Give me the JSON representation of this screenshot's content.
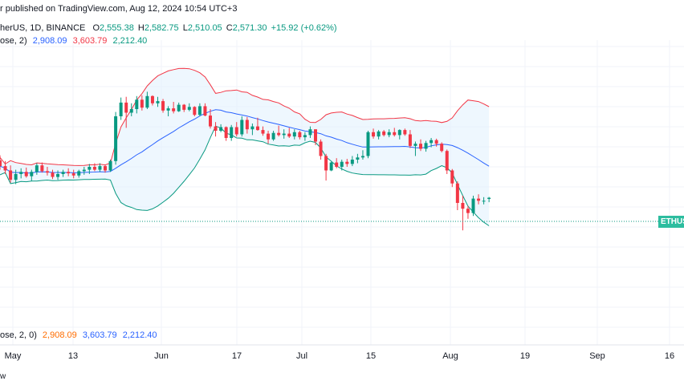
{
  "header": {
    "published_text": "r published on TradingView.com, Aug 12, 2024 10:54 UTC+3",
    "symbol_text": "herUS, 1D, BINANCE",
    "ohlc": {
      "o_label": "O",
      "o_value": "2,555.38",
      "h_label": "H",
      "h_value": "2,582.75",
      "l_label": "L",
      "l_value": "2,510.05",
      "c_label": "C",
      "c_value": "2,571.30",
      "change": "+15.92 (+0.62%)"
    }
  },
  "bb_legend": {
    "label": "ose, 2)",
    "basis": "2,908.09",
    "upper": "3,603.79",
    "lower": "2,212.40"
  },
  "bottom_legend": {
    "label": "ose, 2, 0)",
    "v1": "2,908.09",
    "v2": "3,603.79",
    "v3": "2,212.40"
  },
  "price_tag": "ETHUS",
  "time_axis": [
    "May",
    "13",
    "Jun",
    "17",
    "Jul",
    "15",
    "Aug",
    "19",
    "Sep",
    "16"
  ],
  "logo_text": "w",
  "colors": {
    "up": "#089981",
    "down": "#f23645",
    "basis": "#2962ff",
    "upper": "#f23645",
    "lower": "#089981",
    "band_fill": "#e3f2fd"
  },
  "chart_data": {
    "type": "candlestick",
    "symbol": "herUS",
    "timeframe": "1D",
    "exchange": "BINANCE",
    "candles": [
      [
        3090,
        3160,
        2960,
        3010
      ],
      [
        3010,
        3080,
        2900,
        2950
      ],
      [
        2950,
        3020,
        2780,
        2820
      ],
      [
        2820,
        2960,
        2760,
        2900
      ],
      [
        2900,
        2980,
        2840,
        2930
      ],
      [
        2930,
        2990,
        2850,
        2870
      ],
      [
        2870,
        2960,
        2800,
        2930
      ],
      [
        2930,
        3050,
        2890,
        3020
      ],
      [
        3020,
        3060,
        2920,
        2940
      ],
      [
        2940,
        3000,
        2880,
        2920
      ],
      [
        2920,
        2960,
        2830,
        2860
      ],
      [
        2860,
        2950,
        2820,
        2900
      ],
      [
        2900,
        2960,
        2860,
        2930
      ],
      [
        2930,
        2980,
        2870,
        2910
      ],
      [
        2910,
        2960,
        2840,
        2880
      ],
      [
        2880,
        2960,
        2850,
        2940
      ],
      [
        2940,
        3000,
        2890,
        2960
      ],
      [
        2960,
        3040,
        2900,
        3000
      ],
      [
        3000,
        3050,
        2940,
        2960
      ],
      [
        2960,
        3050,
        2930,
        3010
      ],
      [
        3010,
        3030,
        2920,
        2950
      ],
      [
        2950,
        3100,
        2930,
        3080
      ],
      [
        3080,
        3760,
        3030,
        3700
      ],
      [
        3700,
        3960,
        3650,
        3890
      ],
      [
        3890,
        3970,
        3540,
        3750
      ],
      [
        3750,
        3880,
        3700,
        3800
      ],
      [
        3800,
        3980,
        3740,
        3930
      ],
      [
        3930,
        3990,
        3780,
        3820
      ],
      [
        3820,
        4040,
        3800,
        3980
      ],
      [
        3980,
        3990,
        3850,
        3880
      ],
      [
        3880,
        3970,
        3830,
        3910
      ],
      [
        3910,
        3940,
        3750,
        3780
      ],
      [
        3780,
        3840,
        3700,
        3810
      ],
      [
        3810,
        3900,
        3740,
        3770
      ],
      [
        3770,
        3890,
        3760,
        3860
      ],
      [
        3860,
        3870,
        3760,
        3790
      ],
      [
        3790,
        3880,
        3770,
        3830
      ],
      [
        3830,
        3840,
        3700,
        3720
      ],
      [
        3720,
        3880,
        3700,
        3840
      ],
      [
        3840,
        3880,
        3700,
        3710
      ],
      [
        3710,
        3800,
        3530,
        3560
      ],
      [
        3560,
        3620,
        3420,
        3500
      ],
      [
        3500,
        3590,
        3480,
        3550
      ],
      [
        3550,
        3560,
        3360,
        3400
      ],
      [
        3400,
        3580,
        3360,
        3550
      ],
      [
        3550,
        3620,
        3420,
        3450
      ],
      [
        3450,
        3700,
        3420,
        3650
      ],
      [
        3650,
        3690,
        3460,
        3520
      ],
      [
        3520,
        3600,
        3440,
        3560
      ],
      [
        3560,
        3680,
        3500,
        3510
      ],
      [
        3510,
        3560,
        3430,
        3460
      ],
      [
        3460,
        3500,
        3320,
        3380
      ],
      [
        3380,
        3500,
        3360,
        3470
      ],
      [
        3470,
        3570,
        3420,
        3440
      ],
      [
        3440,
        3520,
        3390,
        3460
      ],
      [
        3460,
        3540,
        3400,
        3420
      ],
      [
        3420,
        3520,
        3380,
        3480
      ],
      [
        3480,
        3500,
        3380,
        3410
      ],
      [
        3410,
        3480,
        3360,
        3440
      ],
      [
        3440,
        3560,
        3400,
        3520
      ],
      [
        3520,
        3520,
        3300,
        3350
      ],
      [
        3350,
        3380,
        3100,
        3150
      ],
      [
        3150,
        3180,
        2810,
        2950
      ],
      [
        2950,
        3070,
        2940,
        3060
      ],
      [
        3060,
        3120,
        2980,
        3000
      ],
      [
        3000,
        3100,
        2950,
        3070
      ],
      [
        3070,
        3110,
        3000,
        3040
      ],
      [
        3040,
        3150,
        3010,
        3100
      ],
      [
        3100,
        3180,
        3050,
        3130
      ],
      [
        3130,
        3230,
        3100,
        3150
      ],
      [
        3150,
        3500,
        3120,
        3480
      ],
      [
        3480,
        3530,
        3390,
        3420
      ],
      [
        3420,
        3510,
        3380,
        3490
      ],
      [
        3490,
        3510,
        3420,
        3440
      ],
      [
        3440,
        3520,
        3410,
        3480
      ],
      [
        3480,
        3540,
        3420,
        3440
      ],
      [
        3440,
        3520,
        3380,
        3510
      ],
      [
        3510,
        3530,
        3430,
        3450
      ],
      [
        3450,
        3510,
        3260,
        3290
      ],
      [
        3290,
        3350,
        3150,
        3320
      ],
      [
        3320,
        3380,
        3220,
        3250
      ],
      [
        3250,
        3360,
        3210,
        3330
      ],
      [
        3330,
        3400,
        3270,
        3370
      ],
      [
        3370,
        3390,
        3280,
        3320
      ],
      [
        3320,
        3340,
        3200,
        3220
      ],
      [
        3220,
        3240,
        2900,
        2950
      ],
      [
        2950,
        2970,
        2720,
        2770
      ],
      [
        2770,
        2800,
        2400,
        2500
      ],
      [
        2500,
        2600,
        2120,
        2420
      ],
      [
        2420,
        2460,
        2280,
        2360
      ],
      [
        2360,
        2600,
        2320,
        2560
      ],
      [
        2560,
        2620,
        2480,
        2530
      ],
      [
        2530,
        2580,
        2480,
        2530
      ],
      [
        2555.38,
        2582.75,
        2510.05,
        2571.3
      ]
    ],
    "indicators": [
      {
        "type": "Bollinger Bands",
        "length": 20,
        "source": "close",
        "mult": 2,
        "offset": 0,
        "basis": 2908.09,
        "upper": 3603.79,
        "lower": 2212.4
      }
    ],
    "last_price": 2571.3,
    "change": "+15.92 (+0.62%)",
    "x_labels": [
      "May",
      "13",
      "Jun",
      "17",
      "Jul",
      "15",
      "Aug",
      "19",
      "Sep",
      "16"
    ]
  }
}
